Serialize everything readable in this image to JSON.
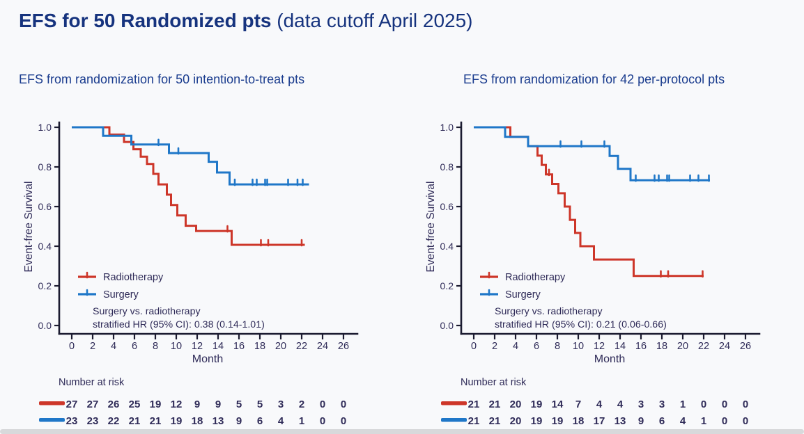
{
  "page": {
    "title_bold": "EFS for 50 Randomized pts",
    "title_normal": " (data cutoff April 2025)"
  },
  "colors": {
    "background": "#f8f9fb",
    "title": "#16337e",
    "subtitle": "#1a3c8e",
    "text": "#2f2b58",
    "axis": "#1b1b30",
    "radiotherapy": "#cd3629",
    "surgery": "#1f77c8"
  },
  "chart_data": [
    {
      "type": "line",
      "subtype": "kaplan-meier-step",
      "title": "EFS from randomization for 50 intention-to-treat pts",
      "xlabel": "Month",
      "ylabel": "Event-free Survival",
      "xlim": [
        0,
        26
      ],
      "ylim": [
        0.0,
        1.0
      ],
      "xticks": [
        0,
        2,
        4,
        6,
        8,
        10,
        12,
        14,
        16,
        18,
        20,
        22,
        24,
        26
      ],
      "yticks": [
        "1.0",
        "0.8",
        "0.6",
        "0.4",
        "0.2",
        "0.0"
      ],
      "grid": false,
      "legend_position": "lower-left-inside",
      "legend": [
        {
          "name": "Radiotherapy",
          "color": "#cd3629"
        },
        {
          "name": "Surgery",
          "color": "#1f77c8"
        }
      ],
      "annotation": [
        "Surgery vs. radiotherapy",
        "stratified HR (95% CI): 0.38 (0.14-1.01)"
      ],
      "series": [
        {
          "name": "Radiotherapy",
          "color": "#cd3629",
          "steps": [
            [
              0,
              1.0
            ],
            [
              3.6,
              0.963
            ],
            [
              5.0,
              0.926
            ],
            [
              5.9,
              0.889
            ],
            [
              6.6,
              0.852
            ],
            [
              7.2,
              0.815
            ],
            [
              7.8,
              0.765
            ],
            [
              8.3,
              0.712
            ],
            [
              9.1,
              0.66
            ],
            [
              9.5,
              0.608
            ],
            [
              10.1,
              0.555
            ],
            [
              10.9,
              0.503
            ],
            [
              11.9,
              0.477
            ],
            [
              15.3,
              0.407
            ]
          ],
          "end": 22.3,
          "censors": [
            [
              14.9,
              0.477
            ],
            [
              18.1,
              0.407
            ],
            [
              18.8,
              0.407
            ],
            [
              22.0,
              0.407
            ]
          ]
        },
        {
          "name": "Surgery",
          "color": "#1f77c8",
          "steps": [
            [
              0,
              1.0
            ],
            [
              3.0,
              0.957
            ],
            [
              5.7,
              0.913
            ],
            [
              9.3,
              0.87
            ],
            [
              13.1,
              0.826
            ],
            [
              13.9,
              0.772
            ],
            [
              15.1,
              0.712
            ]
          ],
          "end": 22.7,
          "censors": [
            [
              8.3,
              0.913
            ],
            [
              10.2,
              0.87
            ],
            [
              15.6,
              0.712
            ],
            [
              17.3,
              0.712
            ],
            [
              17.7,
              0.712
            ],
            [
              18.5,
              0.712
            ],
            [
              18.7,
              0.712
            ],
            [
              20.7,
              0.712
            ],
            [
              21.6,
              0.712
            ],
            [
              22.1,
              0.712
            ]
          ]
        }
      ],
      "risk_table": {
        "title": "Number at risk",
        "months": [
          0,
          2,
          4,
          6,
          8,
          10,
          12,
          14,
          16,
          18,
          20,
          22,
          24,
          26
        ],
        "rows": [
          {
            "name": "Radiotherapy",
            "color": "#cd3629",
            "values": [
              27,
              27,
              26,
              25,
              19,
              12,
              9,
              9,
              5,
              5,
              3,
              2,
              0,
              0
            ]
          },
          {
            "name": "Surgery",
            "color": "#1f77c8",
            "values": [
              23,
              23,
              22,
              21,
              21,
              19,
              18,
              13,
              9,
              6,
              4,
              1,
              0,
              0
            ]
          }
        ]
      }
    },
    {
      "type": "line",
      "subtype": "kaplan-meier-step",
      "title": "EFS from randomization for 42 per-protocol pts",
      "xlabel": "Month",
      "ylabel": "Event-free Survival",
      "xlim": [
        0,
        26
      ],
      "ylim": [
        0.0,
        1.0
      ],
      "xticks": [
        0,
        2,
        4,
        6,
        8,
        10,
        12,
        14,
        16,
        18,
        20,
        22,
        24,
        26
      ],
      "yticks": [
        "1.0",
        "0.8",
        "0.6",
        "0.4",
        "0.2",
        "0.0"
      ],
      "grid": false,
      "legend_position": "lower-left-inside",
      "legend": [
        {
          "name": "Radiotherapy",
          "color": "#cd3629"
        },
        {
          "name": "Surgery",
          "color": "#1f77c8"
        }
      ],
      "annotation": [
        "Surgery vs. radiotherapy",
        "stratified HR (95% CI): 0.21 (0.06-0.66)"
      ],
      "series": [
        {
          "name": "Radiotherapy",
          "color": "#cd3629",
          "steps": [
            [
              0,
              1.0
            ],
            [
              3.5,
              0.952
            ],
            [
              5.2,
              0.905
            ],
            [
              6.1,
              0.857
            ],
            [
              6.5,
              0.81
            ],
            [
              6.9,
              0.762
            ],
            [
              7.5,
              0.714
            ],
            [
              8.1,
              0.667
            ],
            [
              8.7,
              0.6
            ],
            [
              9.2,
              0.533
            ],
            [
              9.7,
              0.467
            ],
            [
              10.2,
              0.4
            ],
            [
              11.5,
              0.333
            ],
            [
              15.3,
              0.25
            ]
          ],
          "end": 22.0,
          "censors": [
            [
              7.2,
              0.762
            ],
            [
              17.9,
              0.25
            ],
            [
              18.6,
              0.25
            ],
            [
              21.9,
              0.25
            ]
          ]
        },
        {
          "name": "Surgery",
          "color": "#1f77c8",
          "steps": [
            [
              0,
              1.0
            ],
            [
              3.0,
              0.952
            ],
            [
              5.2,
              0.905
            ],
            [
              13.0,
              0.855
            ],
            [
              13.8,
              0.79
            ],
            [
              15.0,
              0.733
            ]
          ],
          "end": 22.6,
          "censors": [
            [
              8.3,
              0.905
            ],
            [
              10.3,
              0.905
            ],
            [
              12.5,
              0.905
            ],
            [
              15.5,
              0.733
            ],
            [
              17.3,
              0.733
            ],
            [
              17.7,
              0.733
            ],
            [
              18.5,
              0.733
            ],
            [
              18.7,
              0.733
            ],
            [
              20.7,
              0.733
            ],
            [
              21.5,
              0.733
            ],
            [
              22.5,
              0.733
            ]
          ]
        }
      ],
      "risk_table": {
        "title": "Number at risk",
        "months": [
          0,
          2,
          4,
          6,
          8,
          10,
          12,
          14,
          16,
          18,
          20,
          22,
          24,
          26
        ],
        "rows": [
          {
            "name": "Radiotherapy",
            "color": "#cd3629",
            "values": [
              21,
              21,
              20,
              19,
              14,
              7,
              4,
              4,
              3,
              3,
              1,
              0,
              0,
              0
            ]
          },
          {
            "name": "Surgery",
            "color": "#1f77c8",
            "values": [
              21,
              21,
              20,
              19,
              19,
              18,
              17,
              13,
              9,
              6,
              4,
              1,
              0,
              0
            ]
          }
        ]
      }
    }
  ]
}
